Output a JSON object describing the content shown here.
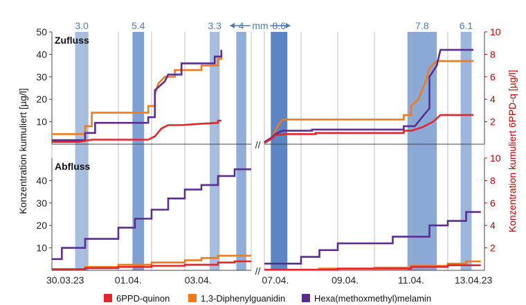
{
  "chart_data": {
    "type": "line",
    "x_tick_labels": [
      "30.03.23",
      "01.04.",
      "03.04.",
      "07.04.",
      "09.04.",
      "11.04.",
      "13.04.23"
    ],
    "ylabel_left": "Konzentration kumuliert [µg/l]",
    "ylabel_right": "Konzentration kumuliert 6PPD-q [µg/l]",
    "axis_break_symbol": "//",
    "rain_unit": "mm",
    "rain_events": [
      {
        "label": "3.0",
        "intensity": 0.35
      },
      {
        "label": "5.4",
        "intensity": 0.7
      },
      {
        "label": "3.3",
        "intensity": 0.35
      },
      {
        "label": "4",
        "intensity": 0.55
      },
      {
        "label": "8.6",
        "intensity": 1.0
      },
      {
        "label": "7.8",
        "intensity": 0.6
      },
      {
        "label": "6.1",
        "intensity": 0.45
      }
    ],
    "legend": [
      {
        "name": "6PPD-quinon",
        "color": "#e0262a"
      },
      {
        "name": "1,3-Diphenylguanidin",
        "color": "#f07a1a"
      },
      {
        "name": "Hexa(methoxmethyl)melamin",
        "color": "#5b2d8f"
      }
    ],
    "panels": [
      {
        "title": "Zufluss",
        "ylim_left": [
          0,
          50
        ],
        "ylim_right": [
          0,
          10
        ],
        "left_ticks": [
          "10",
          "20",
          "30",
          "40",
          "50"
        ],
        "right_ticks": [
          "2",
          "4",
          "6",
          "8",
          "10"
        ],
        "series": [
          {
            "name": "1,3-Diphenylguanidin",
            "axis": "left",
            "points": [
              [
                0.0,
                4.5
              ],
              [
                1.0,
                4.5
              ],
              [
                1.0,
                8
              ],
              [
                1.2,
                8
              ],
              [
                1.2,
                14
              ],
              [
                2.9,
                14
              ],
              [
                2.9,
                17
              ],
              [
                3.1,
                17
              ],
              [
                3.1,
                22
              ],
              [
                3.2,
                27
              ],
              [
                3.4,
                30
              ],
              [
                3.7,
                30
              ],
              [
                3.7,
                33
              ],
              [
                4.5,
                33
              ],
              [
                4.5,
                35
              ],
              [
                5.0,
                35
              ],
              [
                5.0,
                38
              ],
              [
                5.1,
                38
              ],
              [
                5.1,
                40
              ]
            ],
            "points_b": [
              [
                7.0,
                0.5
              ],
              [
                7.2,
                2.5
              ],
              [
                7.3,
                6
              ],
              [
                7.4,
                9
              ],
              [
                7.5,
                11
              ],
              [
                10.8,
                11
              ],
              [
                10.8,
                13
              ],
              [
                11.0,
                13
              ],
              [
                11.0,
                17
              ],
              [
                11.2,
                20
              ],
              [
                11.4,
                28
              ],
              [
                11.5,
                34
              ],
              [
                11.7,
                37
              ],
              [
                12.7,
                37
              ]
            ]
          },
          {
            "name": "Hexa(methoxmethyl)melamin",
            "axis": "left",
            "points": [
              [
                0.0,
                1.8
              ],
              [
                1.0,
                1.8
              ],
              [
                1.0,
                5
              ],
              [
                1.3,
                5
              ],
              [
                1.3,
                9.5
              ],
              [
                2.9,
                9.5
              ],
              [
                2.9,
                12
              ],
              [
                3.1,
                12
              ],
              [
                3.1,
                24
              ],
              [
                3.4,
                28
              ],
              [
                3.5,
                31
              ],
              [
                3.9,
                31
              ],
              [
                3.9,
                36
              ],
              [
                4.9,
                36
              ],
              [
                4.9,
                39
              ],
              [
                5.1,
                39
              ],
              [
                5.1,
                42
              ]
            ],
            "points_b": [
              [
                7.0,
                1.0
              ],
              [
                7.2,
                3
              ],
              [
                7.3,
                4.5
              ],
              [
                7.5,
                6
              ],
              [
                8.3,
                6
              ],
              [
                8.3,
                6.5
              ],
              [
                10.8,
                6.5
              ],
              [
                10.8,
                8
              ],
              [
                11.1,
                8
              ],
              [
                11.3,
                12
              ],
              [
                11.5,
                16
              ],
              [
                11.5,
                30
              ],
              [
                11.7,
                35
              ],
              [
                11.8,
                42
              ],
              [
                12.7,
                42
              ]
            ]
          }
        ],
        "series_right": [
          {
            "name": "6PPD-quinon",
            "axis": "right",
            "points": [
              [
                0.0,
                0.2
              ],
              [
                0.8,
                0.2
              ],
              [
                1.2,
                0.4
              ],
              [
                2.9,
                0.4
              ],
              [
                3.1,
                0.7
              ],
              [
                3.3,
                1.4
              ],
              [
                3.5,
                1.7
              ],
              [
                3.9,
                1.7
              ],
              [
                4.4,
                1.8
              ],
              [
                5.0,
                1.9
              ],
              [
                5.0,
                2.1
              ],
              [
                5.1,
                2.1
              ]
            ],
            "points_b": [
              [
                7.0,
                0.1
              ],
              [
                7.2,
                0.5
              ],
              [
                7.3,
                0.8
              ],
              [
                7.6,
                0.9
              ],
              [
                8.4,
                0.9
              ],
              [
                8.4,
                1.0
              ],
              [
                10.8,
                1.0
              ],
              [
                10.8,
                1.2
              ],
              [
                11.0,
                1.2
              ],
              [
                11.3,
                1.5
              ],
              [
                11.6,
                2.0
              ],
              [
                11.8,
                2.6
              ],
              [
                12.7,
                2.6
              ]
            ]
          }
        ]
      },
      {
        "title": "Abfluss",
        "ylim_left": [
          0,
          50
        ],
        "ylim_right": [
          0,
          10
        ],
        "left_ticks": [
          "10",
          "20",
          "30",
          "40"
        ],
        "right_ticks": [
          "2",
          "4",
          "6",
          "8",
          "10"
        ],
        "series": [
          {
            "name": "Hexa(methoxmethyl)melamin",
            "axis": "left",
            "points": [
              [
                0.0,
                5
              ],
              [
                0.3,
                5
              ],
              [
                0.3,
                10
              ],
              [
                1.0,
                10
              ],
              [
                1.0,
                14
              ],
              [
                2.0,
                14
              ],
              [
                2.0,
                19
              ],
              [
                2.5,
                19
              ],
              [
                2.5,
                23
              ],
              [
                3.0,
                23
              ],
              [
                3.0,
                27
              ],
              [
                3.5,
                27
              ],
              [
                3.5,
                32
              ],
              [
                4.0,
                32
              ],
              [
                4.0,
                36
              ],
              [
                4.5,
                36
              ],
              [
                4.5,
                38
              ],
              [
                5.0,
                38
              ],
              [
                5.0,
                42
              ],
              [
                5.5,
                42
              ],
              [
                5.5,
                45
              ],
              [
                6.0,
                45
              ]
            ],
            "points_b": [
              [
                7.0,
                3
              ],
              [
                8.0,
                3
              ],
              [
                8.0,
                6
              ],
              [
                8.5,
                6
              ],
              [
                8.5,
                9
              ],
              [
                9.0,
                9
              ],
              [
                9.0,
                12
              ],
              [
                10.5,
                12
              ],
              [
                10.5,
                15
              ],
              [
                11.5,
                15
              ],
              [
                11.5,
                20
              ],
              [
                12.0,
                20
              ],
              [
                12.0,
                22
              ],
              [
                12.5,
                22
              ],
              [
                12.5,
                26
              ],
              [
                12.9,
                26
              ]
            ]
          },
          {
            "name": "1,3-Diphenylguanidin",
            "axis": "left",
            "points": [
              [
                0.0,
                0.5
              ],
              [
                1.0,
                0.5
              ],
              [
                1.0,
                1.5
              ],
              [
                2.0,
                1.5
              ],
              [
                2.0,
                2.5
              ],
              [
                3.0,
                2.5
              ],
              [
                3.0,
                3.5
              ],
              [
                4.0,
                3.5
              ],
              [
                4.0,
                4.5
              ],
              [
                4.5,
                4.5
              ],
              [
                4.5,
                5.5
              ],
              [
                5.0,
                5.5
              ],
              [
                5.0,
                6.5
              ],
              [
                6.0,
                6.5
              ]
            ],
            "points_b": [
              [
                7.0,
                0.3
              ],
              [
                8.5,
                0.3
              ],
              [
                8.5,
                0.8
              ],
              [
                10.0,
                0.8
              ],
              [
                10.0,
                1.2
              ],
              [
                11.0,
                1.2
              ],
              [
                11.0,
                2.0
              ],
              [
                12.0,
                2.0
              ],
              [
                12.0,
                3.0
              ],
              [
                12.5,
                3.0
              ],
              [
                12.5,
                4.0
              ],
              [
                12.9,
                4.0
              ]
            ]
          }
        ],
        "series_right": [
          {
            "name": "6PPD-quinon",
            "axis": "right",
            "points": [
              [
                0.0,
                0.1
              ],
              [
                1.0,
                0.1
              ],
              [
                1.0,
                0.2
              ],
              [
                2.0,
                0.2
              ],
              [
                2.0,
                0.3
              ],
              [
                3.0,
                0.3
              ],
              [
                3.0,
                0.4
              ],
              [
                4.0,
                0.4
              ],
              [
                4.0,
                0.5
              ],
              [
                5.0,
                0.5
              ],
              [
                5.0,
                0.7
              ],
              [
                5.5,
                0.7
              ],
              [
                5.5,
                0.8
              ],
              [
                6.0,
                0.8
              ]
            ],
            "points_b": [
              [
                7.0,
                0.05
              ],
              [
                9.0,
                0.05
              ],
              [
                9.0,
                0.15
              ],
              [
                11.0,
                0.15
              ],
              [
                11.0,
                0.3
              ],
              [
                12.0,
                0.3
              ],
              [
                12.0,
                0.45
              ],
              [
                12.9,
                0.45
              ]
            ]
          }
        ]
      }
    ]
  }
}
